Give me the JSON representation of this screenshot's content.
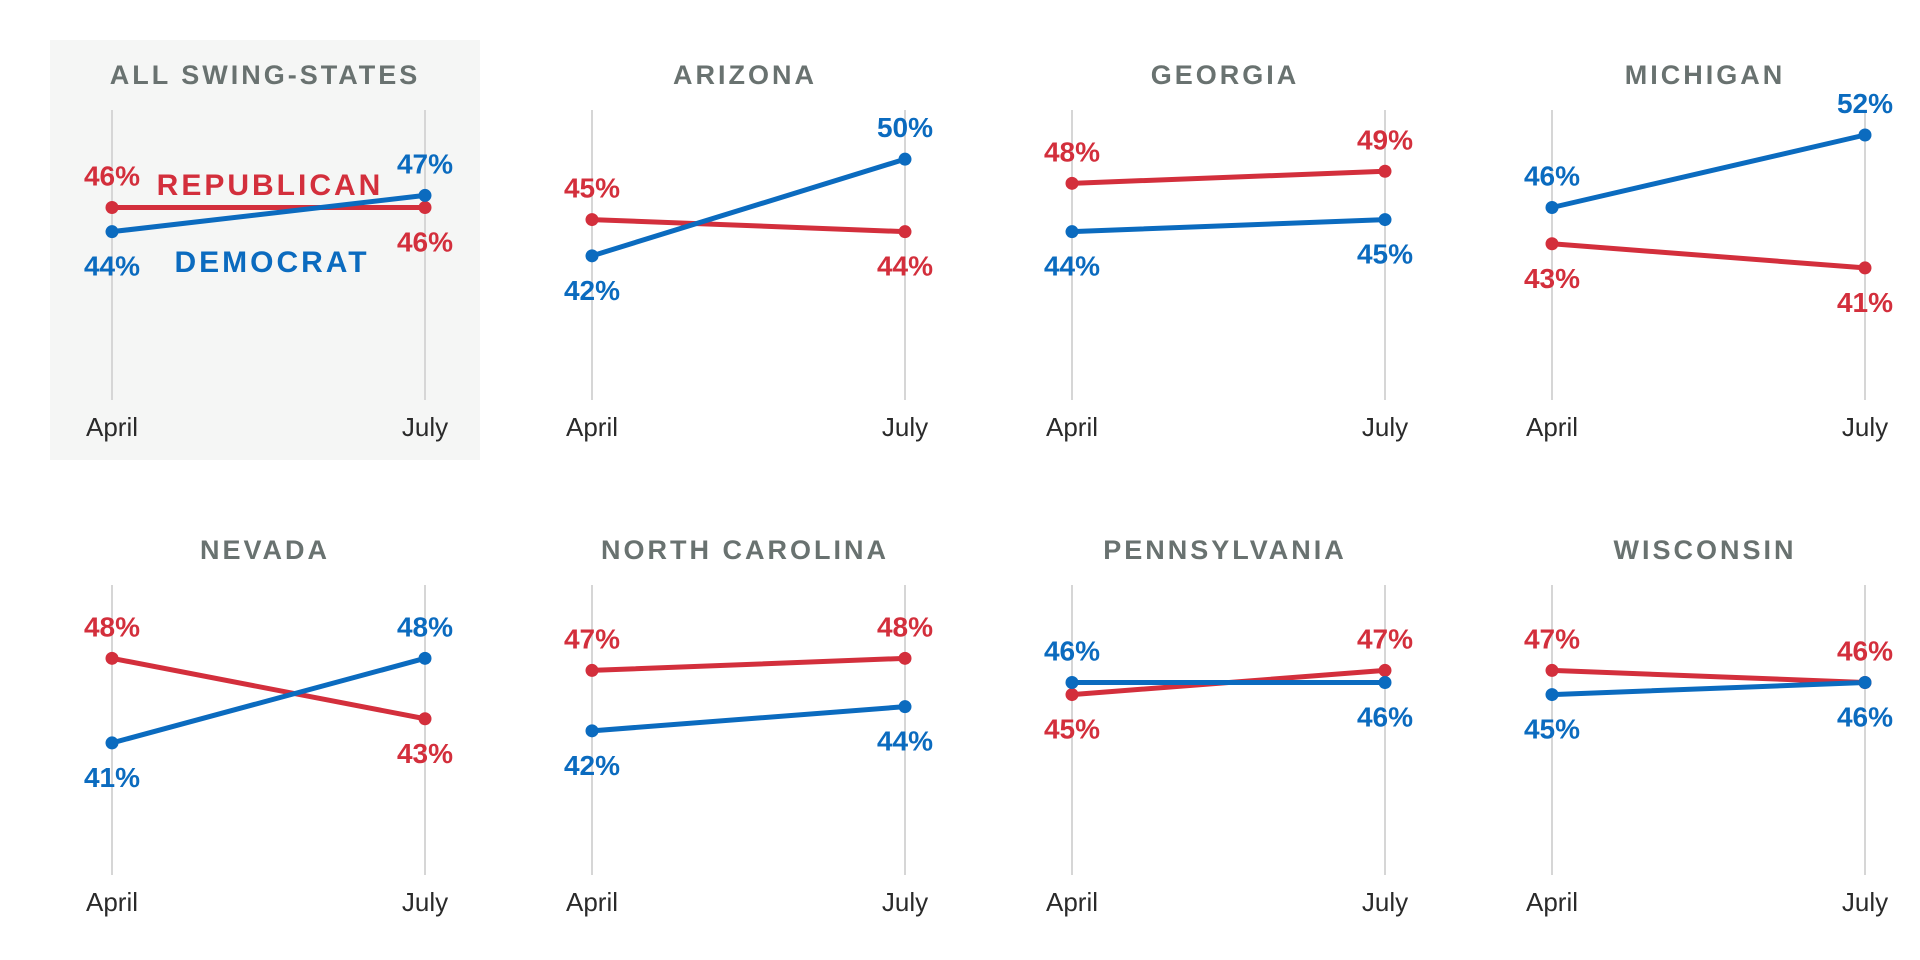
{
  "colors": {
    "democrat": "#0b6bbf",
    "republican": "#d32f3c",
    "axis": "#d6d6d6",
    "title": "#697270",
    "highlight_bg": "#f5f6f5"
  },
  "legend": {
    "republican": "REPUBLICAN",
    "democrat": "DEMOCRAT"
  },
  "chart_data": [
    {
      "type": "line",
      "title": "ALL SWING-STATES",
      "categories": [
        "April",
        "July"
      ],
      "highlighted": true,
      "series": [
        {
          "name": "REPUBLICAN",
          "values": [
            46,
            46
          ],
          "labels": [
            "46%",
            "46%"
          ]
        },
        {
          "name": "DEMOCRAT",
          "values": [
            44,
            47
          ],
          "labels": [
            "44%",
            "47%"
          ]
        }
      ]
    },
    {
      "type": "line",
      "title": "ARIZONA",
      "categories": [
        "April",
        "July"
      ],
      "series": [
        {
          "values": [
            45,
            44
          ],
          "labels": [
            "45%",
            "44%"
          ]
        },
        {
          "values": [
            42,
            50
          ],
          "labels": [
            "42%",
            "50%"
          ]
        }
      ]
    },
    {
      "type": "line",
      "title": "GEORGIA",
      "categories": [
        "April",
        "July"
      ],
      "series": [
        {
          "values": [
            48,
            49
          ],
          "labels": [
            "48%",
            "49%"
          ]
        },
        {
          "values": [
            44,
            45
          ],
          "labels": [
            "44%",
            "45%"
          ]
        }
      ]
    },
    {
      "type": "line",
      "title": "MICHIGAN",
      "categories": [
        "April",
        "July"
      ],
      "series": [
        {
          "values": [
            43,
            41
          ],
          "labels": [
            "43%",
            "41%"
          ]
        },
        {
          "values": [
            46,
            52
          ],
          "labels": [
            "46%",
            "52%"
          ]
        }
      ]
    },
    {
      "type": "line",
      "title": "NEVADA",
      "categories": [
        "April",
        "July"
      ],
      "series": [
        {
          "values": [
            48,
            43
          ],
          "labels": [
            "48%",
            "43%"
          ]
        },
        {
          "values": [
            41,
            48
          ],
          "labels": [
            "41%",
            "48%"
          ]
        }
      ]
    },
    {
      "type": "line",
      "title": "NORTH CAROLINA",
      "categories": [
        "April",
        "July"
      ],
      "series": [
        {
          "values": [
            47,
            48
          ],
          "labels": [
            "47%",
            "48%"
          ]
        },
        {
          "values": [
            42,
            44
          ],
          "labels": [
            "42%",
            "44%"
          ]
        }
      ]
    },
    {
      "type": "line",
      "title": "PENNSYLVANIA",
      "categories": [
        "April",
        "July"
      ],
      "series": [
        {
          "values": [
            45,
            47
          ],
          "labels": [
            "45%",
            "47%"
          ]
        },
        {
          "values": [
            46,
            46
          ],
          "labels": [
            "46%",
            "46%"
          ]
        }
      ]
    },
    {
      "type": "line",
      "title": "WISCONSIN",
      "categories": [
        "April",
        "July"
      ],
      "series": [
        {
          "values": [
            47,
            46
          ],
          "labels": [
            "47%",
            "46%"
          ]
        },
        {
          "values": [
            45,
            46
          ],
          "labels": [
            "45%",
            "46%"
          ]
        }
      ]
    }
  ]
}
